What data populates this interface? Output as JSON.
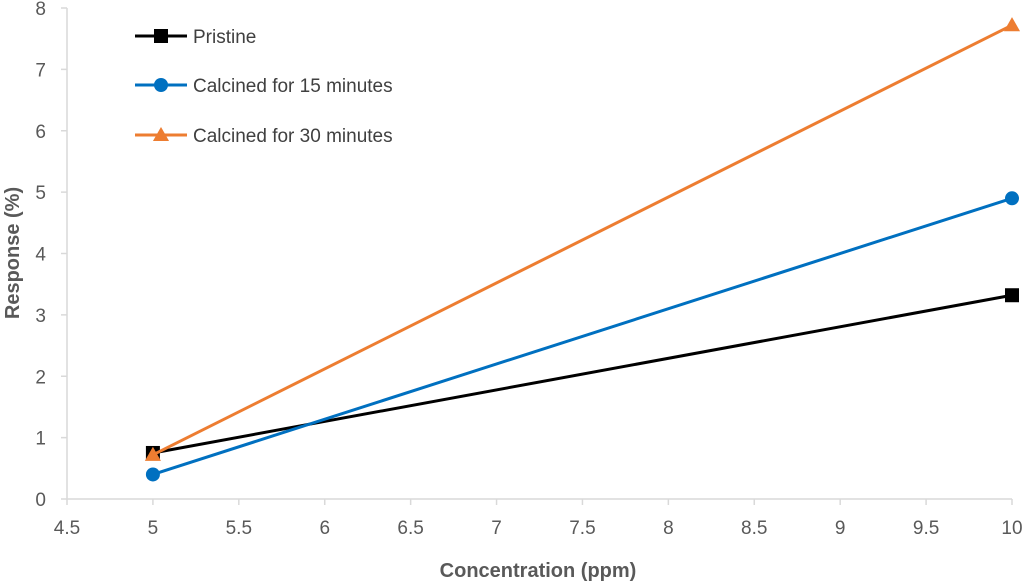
{
  "chart_data": {
    "type": "line",
    "title": "",
    "xlabel": "Concentration (ppm)",
    "ylabel": "Response (%)",
    "xlim": [
      4.5,
      10
    ],
    "ylim": [
      0,
      8
    ],
    "x_ticks": [
      "4.5",
      "5",
      "5.5",
      "6",
      "6.5",
      "7",
      "7.5",
      "8",
      "8.5",
      "9",
      "9.5",
      "10"
    ],
    "y_ticks": [
      "0",
      "1",
      "2",
      "3",
      "4",
      "5",
      "6",
      "7",
      "8"
    ],
    "gridlines": false,
    "legend_position": "top-left",
    "series": [
      {
        "name": "Pristine",
        "x": [
          5,
          10
        ],
        "y": [
          0.75,
          3.32
        ],
        "color": "#000000",
        "marker": "square"
      },
      {
        "name": "Calcined for 15 minutes",
        "x": [
          5,
          10
        ],
        "y": [
          0.4,
          4.9
        ],
        "color": "#0070C0",
        "marker": "circle"
      },
      {
        "name": "Calcined for 30 minutes",
        "x": [
          5,
          10
        ],
        "y": [
          0.72,
          7.72
        ],
        "color": "#ED7D31",
        "marker": "triangle"
      }
    ]
  }
}
